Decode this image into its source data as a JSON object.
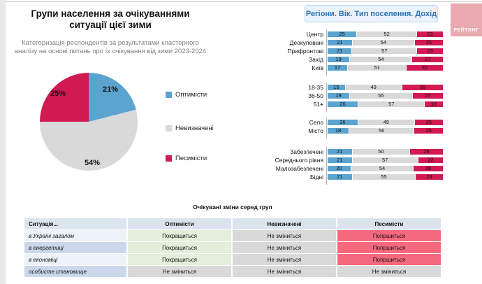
{
  "title": {
    "line1": "Групи населення за очікуваннями",
    "line2": "ситуації цієї зими"
  },
  "subtitle": {
    "line1": "Категоризація респондентів за результатами кластерного",
    "line2": "аналізу на основі питань про їх очікування від зими 2023-2024"
  },
  "right_header": {
    "label": "Регіони. Вік. Тип поселення. Дохід"
  },
  "logo": {
    "label": "РЕЙТИНГ",
    "bg": "#E9A9B0"
  },
  "colors": {
    "optimists": "#5BA4CF",
    "undecided": "#D9D9D9",
    "pessimists": "#D11A52",
    "table_improve": "#E2EFDA",
    "table_same": "#D9D9D9",
    "table_worsen": "#F4697D",
    "header_box_bg": "#EAF2FB",
    "header_box_text": "#2E74B5"
  },
  "chart_data": [
    {
      "type": "pie",
      "title": "Групи населення за очікуваннями ситуації цієї зими",
      "labels": [
        "Оптимісти",
        "Невизначені",
        "Песимісти"
      ],
      "values": [
        21,
        54,
        25
      ],
      "value_labels": [
        "21%",
        "54%",
        "25%"
      ],
      "colors": [
        "#5BA4CF",
        "#D9D9D9",
        "#D11A52"
      ],
      "legend_position": "right",
      "start_angle_deg": 0
    },
    {
      "type": "bar",
      "stacked": true,
      "title": "Регіони. Вік. Тип поселення. Дохід",
      "categories": [
        "Центр",
        "Деокуповані",
        "Прифронтові",
        "Захід",
        "Київ",
        "18-35",
        "36-50",
        "51+",
        "Село",
        "Місто",
        "Забезпечені",
        "Середнього рівня",
        "Малозабезпечені",
        "Бідні"
      ],
      "groups": [
        5,
        3,
        2,
        4
      ],
      "series": [
        {
          "name": "Оптимісти",
          "color": "#5BA4CF",
          "values": [
            25,
            21,
            21,
            19,
            17,
            15,
            19,
            26,
            26,
            18,
            21,
            21,
            20,
            21
          ]
        },
        {
          "name": "Невизначені",
          "color": "#D9D9D9",
          "values": [
            52,
            54,
            57,
            54,
            51,
            49,
            55,
            57,
            49,
            56,
            50,
            57,
            54,
            55
          ]
        },
        {
          "name": "Песимісти",
          "color": "#D11A52",
          "values": [
            23,
            25,
            23,
            27,
            32,
            36,
            27,
            16,
            25,
            25,
            29,
            22,
            26,
            24
          ]
        }
      ],
      "xlim": [
        0,
        100
      ]
    },
    {
      "type": "table",
      "title": "Очікувані зміни серед груп",
      "columns": [
        "Ситуація...",
        "Оптимісти",
        "Невизначені",
        "Песимісти"
      ],
      "rows": [
        {
          "label": "в Україні загалом",
          "cells": [
            {
              "text": "Покращиться",
              "variant": "improve"
            },
            {
              "text": "Не зміниться",
              "variant": "same"
            },
            {
              "text": "Погіршиться",
              "variant": "worsen"
            }
          ]
        },
        {
          "label": "в енергетиці",
          "cells": [
            {
              "text": "Покращиться",
              "variant": "improve"
            },
            {
              "text": "Не зміниться",
              "variant": "same"
            },
            {
              "text": "Погіршиться",
              "variant": "worsen"
            }
          ]
        },
        {
          "label": "в економіці",
          "cells": [
            {
              "text": "Покращиться",
              "variant": "improve"
            },
            {
              "text": "Не зміниться",
              "variant": "same"
            },
            {
              "text": "Погіршиться",
              "variant": "worsen"
            }
          ]
        },
        {
          "label": "особисте становище",
          "cells": [
            {
              "text": "Не зміниться",
              "variant": "same"
            },
            {
              "text": "Не зміниться",
              "variant": "same"
            },
            {
              "text": "Не зміниться",
              "variant": "same"
            }
          ]
        }
      ]
    }
  ]
}
